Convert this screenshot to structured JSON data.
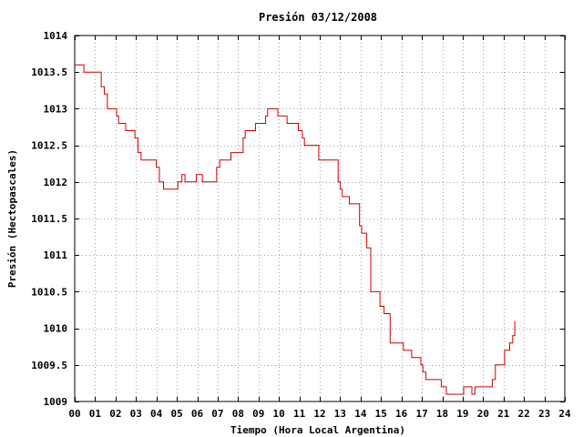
{
  "chart_data": {
    "type": "line",
    "title": "Presión 03/12/2008",
    "xlabel": "Tiempo (Hora Local Argentina)",
    "ylabel": "Presión (Hectopascales)",
    "xlim": [
      0,
      24
    ],
    "ylim": [
      1009,
      1014
    ],
    "grid": true,
    "line_color": "#cc0000",
    "x_ticks": [
      "00",
      "01",
      "02",
      "03",
      "04",
      "05",
      "06",
      "07",
      "08",
      "09",
      "10",
      "11",
      "12",
      "13",
      "14",
      "15",
      "16",
      "17",
      "18",
      "19",
      "20",
      "21",
      "22",
      "23",
      "24"
    ],
    "y_ticks": [
      "1009",
      "1009.5",
      "1010",
      "1010.5",
      "1011",
      "1011.5",
      "1012",
      "1012.5",
      "1013",
      "1013.5",
      "1014"
    ],
    "series": [
      {
        "x": [
          0.0,
          0.35,
          0.45,
          1.0,
          1.3,
          1.45,
          1.6,
          2.05,
          2.15,
          2.5,
          2.95,
          3.1,
          3.25,
          3.9,
          4.0,
          4.15,
          4.35,
          4.95,
          5.05,
          5.25,
          5.4,
          5.95,
          6.05,
          6.25,
          6.35,
          6.95,
          7.1,
          7.5,
          7.65,
          8.25,
          8.35,
          8.85,
          9.05,
          9.35,
          9.45,
          9.95,
          10.1,
          10.4,
          10.5,
          10.95,
          11.05,
          11.15,
          11.25,
          11.95,
          12.05,
          12.2,
          12.9,
          13.0,
          13.1,
          13.2,
          13.45,
          13.95,
          14.05,
          14.15,
          14.3,
          14.5,
          14.95,
          15.05,
          15.15,
          15.45,
          15.95,
          16.1,
          16.5,
          16.95,
          17.05,
          17.2,
          17.95,
          18.05,
          18.2,
          18.95,
          19.05,
          19.35,
          19.45,
          19.6,
          19.95,
          20.05,
          20.45,
          20.6,
          20.95,
          21.05,
          21.3,
          21.45,
          21.55
        ],
        "y": [
          1013.6,
          1013.6,
          1013.5,
          1013.5,
          1013.3,
          1013.2,
          1013.0,
          1012.9,
          1012.8,
          1012.7,
          1012.6,
          1012.4,
          1012.3,
          1012.3,
          1012.2,
          1012.0,
          1011.9,
          1011.9,
          1012.0,
          1012.1,
          1012.0,
          1012.1,
          1012.1,
          1012.0,
          1012.0,
          1012.2,
          1012.3,
          1012.3,
          1012.4,
          1012.6,
          1012.7,
          1012.8,
          1012.8,
          1012.9,
          1013.0,
          1012.9,
          1012.9,
          1012.8,
          1012.8,
          1012.7,
          1012.7,
          1012.6,
          1012.5,
          1012.3,
          1012.3,
          1012.3,
          1012.0,
          1011.9,
          1011.8,
          1011.8,
          1011.7,
          1011.4,
          1011.3,
          1011.3,
          1011.1,
          1010.5,
          1010.3,
          1010.3,
          1010.2,
          1009.8,
          1009.8,
          1009.7,
          1009.6,
          1009.5,
          1009.4,
          1009.3,
          1009.2,
          1009.2,
          1009.1,
          1009.1,
          1009.2,
          1009.2,
          1009.1,
          1009.2,
          1009.2,
          1009.2,
          1009.3,
          1009.5,
          1009.5,
          1009.7,
          1009.8,
          1009.9,
          1010.1
        ]
      }
    ]
  }
}
